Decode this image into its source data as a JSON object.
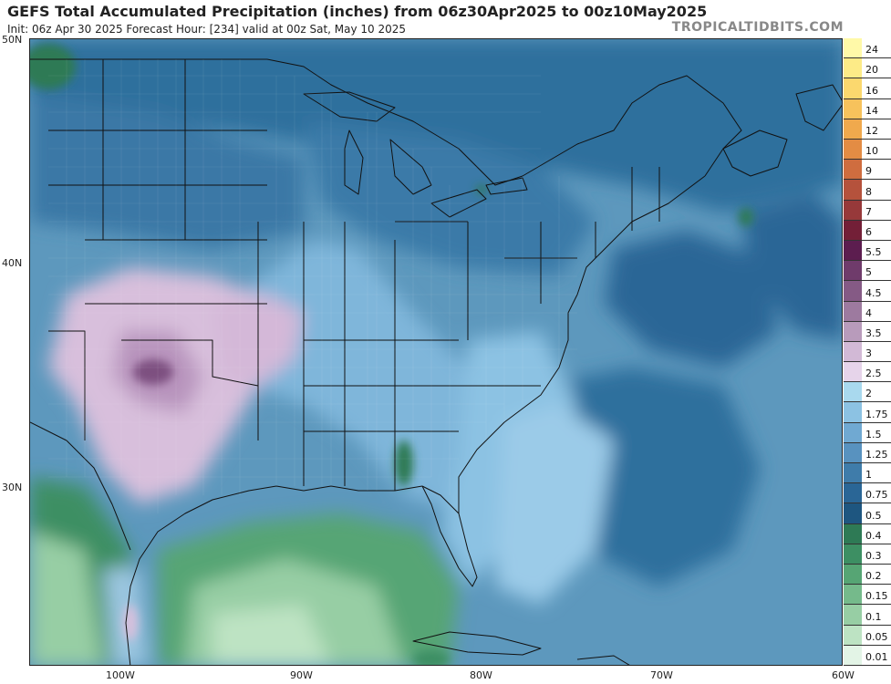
{
  "header": {
    "title": "GEFS Total Accumulated Precipitation (inches) from 06z30Apr2025 to 00z10May2025",
    "subtitle": "Init: 06z Apr 30 2025   Forecast Hour: [234]   valid at 00z Sat, May 10 2025",
    "brand": "TROPICALTIDBITS.COM"
  },
  "axes": {
    "latitudes": [
      {
        "label": "50N",
        "value": 50
      },
      {
        "label": "40N",
        "value": 40
      },
      {
        "label": "30N",
        "value": 30
      }
    ],
    "longitudes": [
      {
        "label": "100W",
        "value": -100
      },
      {
        "label": "90W",
        "value": -90
      },
      {
        "label": "80W",
        "value": -80
      },
      {
        "label": "70W",
        "value": -70
      },
      {
        "label": "60W",
        "value": -60
      }
    ]
  },
  "colorbar": {
    "levels": [
      {
        "label": "24",
        "color": "#fff9a8"
      },
      {
        "label": "20",
        "color": "#fdeb87"
      },
      {
        "label": "16",
        "color": "#fbd86e"
      },
      {
        "label": "14",
        "color": "#f7c25c"
      },
      {
        "label": "12",
        "color": "#f0a94d"
      },
      {
        "label": "10",
        "color": "#e38c44"
      },
      {
        "label": "9",
        "color": "#cf6d3f"
      },
      {
        "label": "8",
        "color": "#b5523c"
      },
      {
        "label": "7",
        "color": "#97393a"
      },
      {
        "label": "6",
        "color": "#731f37"
      },
      {
        "label": "5.5",
        "color": "#5c1d4f"
      },
      {
        "label": "5",
        "color": "#6f3b6b"
      },
      {
        "label": "4.5",
        "color": "#855a85"
      },
      {
        "label": "4",
        "color": "#9d7a9f"
      },
      {
        "label": "3.5",
        "color": "#b89bbb"
      },
      {
        "label": "3",
        "color": "#d2b9d6"
      },
      {
        "label": "2.5",
        "color": "#e6d4ea"
      },
      {
        "label": "2",
        "color": "#a9d9ee"
      },
      {
        "label": "1.75",
        "color": "#8cc2e3"
      },
      {
        "label": "1.5",
        "color": "#70a9d2"
      },
      {
        "label": "1.25",
        "color": "#5892bf"
      },
      {
        "label": "1",
        "color": "#3f7caa"
      },
      {
        "label": "0.75",
        "color": "#2a6696"
      },
      {
        "label": "0.5",
        "color": "#1e5680"
      },
      {
        "label": "0.4",
        "color": "#2e7a55"
      },
      {
        "label": "0.3",
        "color": "#3d8f63"
      },
      {
        "label": "0.2",
        "color": "#56a574"
      },
      {
        "label": "0.15",
        "color": "#75ba8b"
      },
      {
        "label": "0.1",
        "color": "#97cea4"
      },
      {
        "label": "0.05",
        "color": "#bde3c3"
      },
      {
        "label": "0.01",
        "color": "#e3f4e6"
      }
    ]
  },
  "map": {
    "ocean_color": "#5d98bd",
    "land_base_color": "#4d86b0",
    "border_color": "#111111"
  }
}
